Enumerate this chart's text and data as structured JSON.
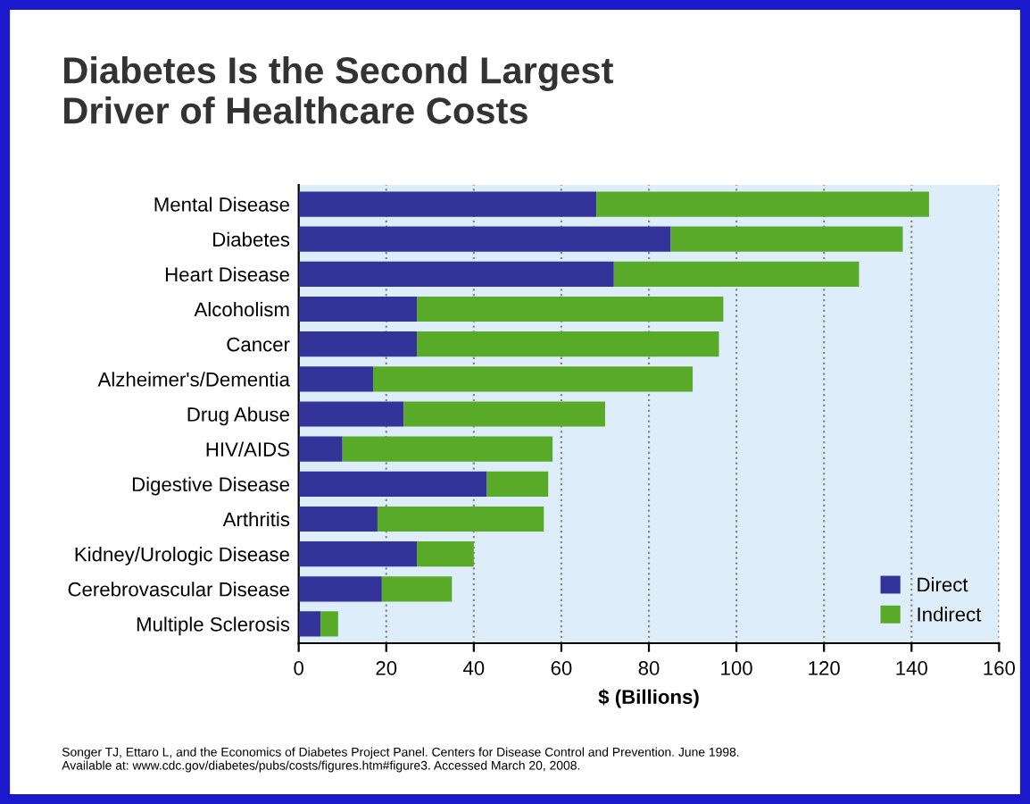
{
  "chart_data": {
    "type": "bar",
    "orientation": "horizontal",
    "stacked": true,
    "title": "Diabetes Is the Second Largest\nDriver of Healthcare Costs",
    "xlabel": "$ (Billions)",
    "categories": [
      "Mental Disease",
      "Diabetes",
      "Heart Disease",
      "Alcoholism",
      "Cancer",
      "Alzheimer's/Dementia",
      "Drug Abuse",
      "HIV/AIDS",
      "Digestive Disease",
      "Arthritis",
      "Kidney/Urologic Disease",
      "Cerebrovascular Disease",
      "Multiple Sclerosis"
    ],
    "series": [
      {
        "name": "Direct",
        "color": "#33339a",
        "values": [
          68,
          85,
          72,
          27,
          27,
          17,
          24,
          10,
          43,
          18,
          27,
          19,
          5
        ]
      },
      {
        "name": "Indirect",
        "color": "#5aaa2a",
        "values": [
          76,
          53,
          56,
          70,
          69,
          73,
          46,
          48,
          14,
          38,
          13,
          16,
          4
        ]
      }
    ],
    "xlim": [
      0,
      160
    ],
    "xticks": [
      0,
      20,
      40,
      60,
      80,
      100,
      120,
      140,
      160
    ],
    "grid": "x",
    "legend": "bottom right",
    "annotations": [
      "Songer TJ, Ettaro L, and the Economics of Diabetes Project Panel. Centers for Disease Control and Prevention. June 1998.\nAvailable at: www.cdc.gov/diabetes/pubs/costs/figures.htm#figure3. Accessed March 20, 2008."
    ]
  }
}
